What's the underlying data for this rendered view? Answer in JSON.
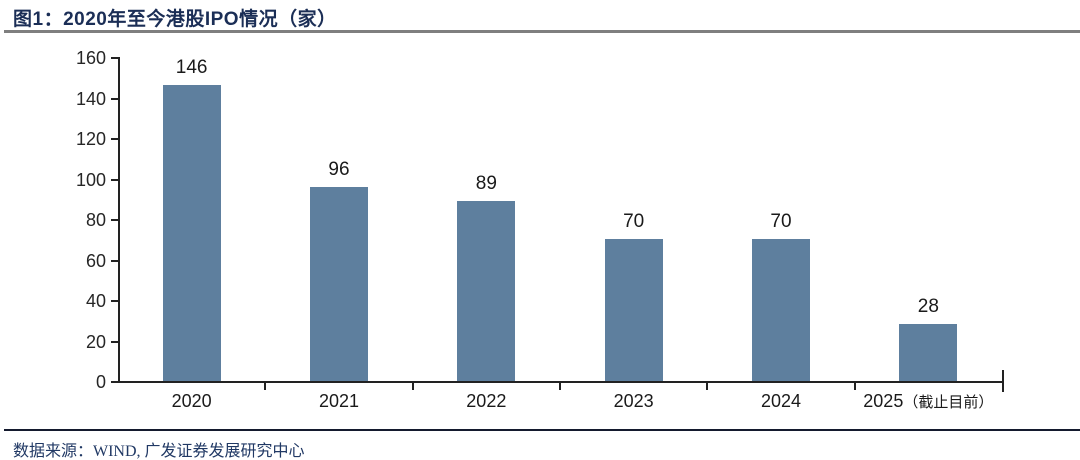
{
  "header": {
    "title": "图1：2020年至今港股IPO情况（家）"
  },
  "footer": {
    "source": "数据来源：WIND, 广发证券发展研究中心"
  },
  "colors": {
    "bar": "#5e7f9e",
    "title_text": "#1b2e56",
    "footer_text": "#203864",
    "axis": "#222222",
    "rule_top": "#7f7f7f",
    "rule_bottom": "#141a2e"
  },
  "chart_data": {
    "type": "bar",
    "title": "图1：2020年至今港股IPO情况（家）",
    "categories": [
      "2020",
      "2021",
      "2022",
      "2023",
      "2024",
      "2025"
    ],
    "category_suffixes": [
      "",
      "",
      "",
      "",
      "",
      "（截止目前）"
    ],
    "values": [
      146,
      96,
      89,
      70,
      70,
      28
    ],
    "bar_value_labels": [
      "146",
      "96",
      "89",
      "70",
      "70",
      "28"
    ],
    "xlabel": "",
    "ylabel": "",
    "ylim": [
      0,
      160
    ],
    "ytick_step": 20,
    "ytick_labels": [
      "0",
      "20",
      "40",
      "60",
      "80",
      "100",
      "120",
      "140",
      "160"
    ],
    "grid": false,
    "legend": "none"
  }
}
